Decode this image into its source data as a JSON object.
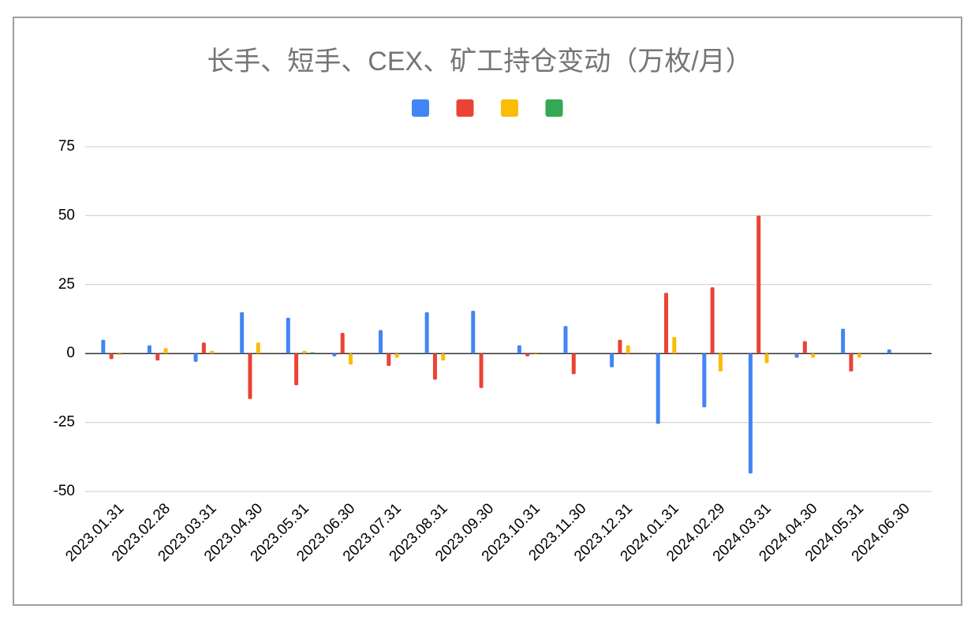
{
  "chart_data": {
    "type": "bar",
    "title": "长手、短手、CEX、矿工持仓变动（万枚/月）",
    "categories": [
      "2023.01.31",
      "2023.02.28",
      "2023.03.31",
      "2023.04.30",
      "2023.05.31",
      "2023.06.30",
      "2023.07.31",
      "2023.08.31",
      "2023.09.30",
      "2023.10.31",
      "2023.11.30",
      "2023.12.31",
      "2024.01.31",
      "2024.02.29",
      "2024.03.31",
      "2024.04.30",
      "2024.05.31",
      "2024.06.30"
    ],
    "series": [
      {
        "color": "#4285f4",
        "values": [
          5,
          3,
          -3,
          15,
          13,
          -1,
          8.5,
          15,
          15.5,
          3,
          10,
          -5,
          -25.5,
          -19.5,
          -43.5,
          -1.5,
          9,
          1.5
        ]
      },
      {
        "color": "#ea4335",
        "values": [
          -2,
          -2.5,
          4,
          -16.5,
          -11.5,
          7.5,
          -4.5,
          -9.5,
          -12.5,
          -1,
          -7.5,
          5,
          22,
          24,
          50,
          4.5,
          -6.5,
          0
        ]
      },
      {
        "color": "#fbbc04",
        "values": [
          -0.5,
          2,
          1,
          4,
          1,
          -4,
          -1.5,
          -2.5,
          0,
          0.5,
          0,
          3,
          6,
          -6.5,
          -3.5,
          -1.5,
          -1.5,
          0
        ]
      },
      {
        "color": "#34a853",
        "values": [
          0,
          0,
          0,
          0,
          0.5,
          0,
          0,
          0,
          0,
          0,
          0,
          0,
          0,
          0,
          0,
          0,
          0,
          0
        ]
      }
    ],
    "ylim": [
      -50,
      75
    ],
    "yticks": [
      -50,
      -25,
      0,
      25,
      50,
      75
    ],
    "grid": true
  }
}
